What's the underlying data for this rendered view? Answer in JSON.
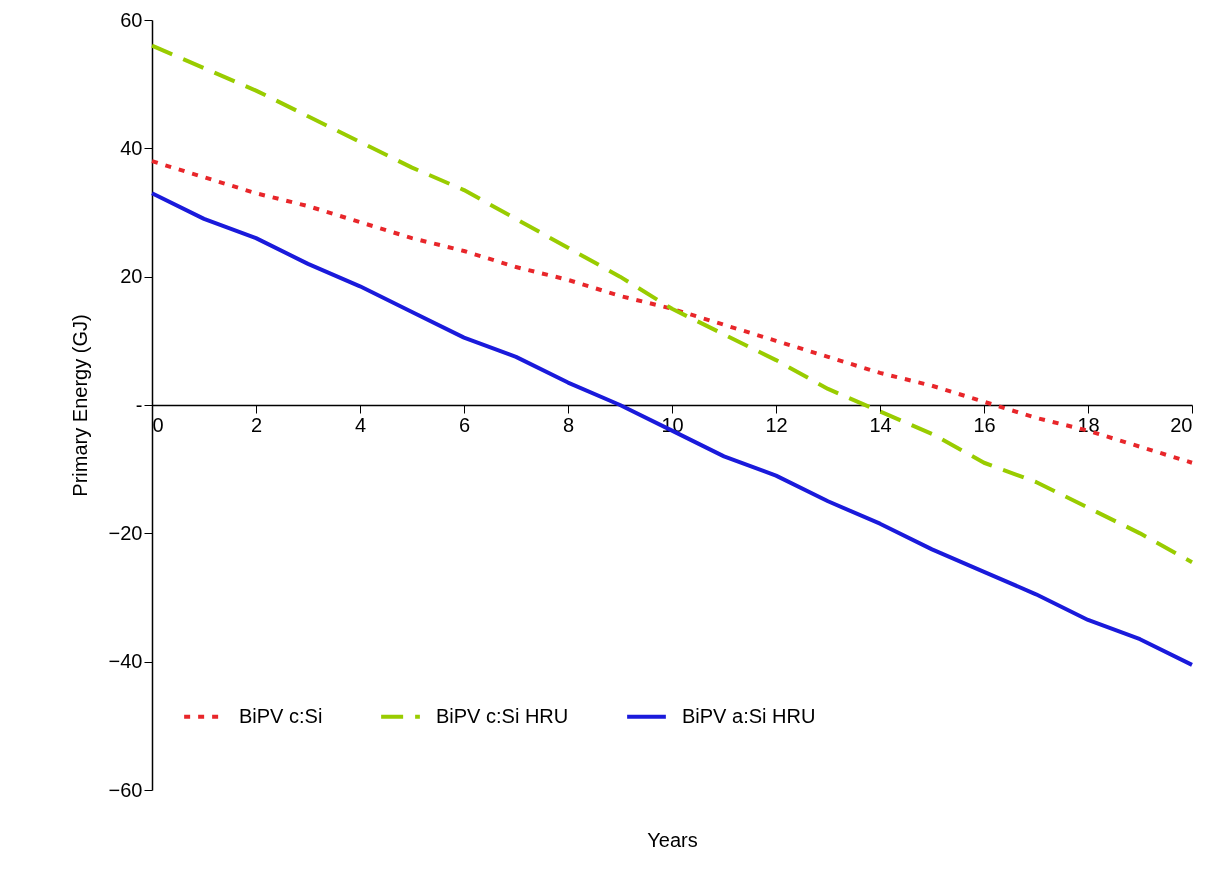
{
  "chart_data": {
    "type": "line",
    "xlabel": "Years",
    "ylabel": "Primary Energy (GJ)",
    "x": [
      0,
      1,
      2,
      3,
      4,
      5,
      6,
      7,
      8,
      9,
      10,
      11,
      12,
      13,
      14,
      15,
      16,
      17,
      18,
      19,
      20
    ],
    "xlim": [
      0,
      20
    ],
    "xticks": [
      0,
      2,
      4,
      6,
      8,
      10,
      12,
      14,
      16,
      18,
      20
    ],
    "ylim": [
      -60,
      60
    ],
    "yticks": [
      -60,
      -40,
      -20,
      {
        "value": 0,
        "label": "-"
      },
      20,
      40,
      60
    ],
    "grid": false,
    "legend": "bottom",
    "marker": "none",
    "series": [
      {
        "name": "BiPV c:Si",
        "color": "#e8262a",
        "line_style": "dotted",
        "values": [
          38,
          35.5,
          33,
          31,
          28.5,
          26,
          24,
          21.5,
          19.5,
          17,
          15,
          12.5,
          10,
          7.5,
          5,
          3,
          0.5,
          -2,
          -4,
          -6.5,
          -9
        ]
      },
      {
        "name": "BiPV c:Si HRU",
        "color": "#99cc00",
        "line_style": "dashed",
        "values": [
          56,
          52.5,
          49,
          45,
          41,
          37,
          33.5,
          29,
          24.5,
          20,
          15,
          11,
          7,
          2.5,
          -1,
          -4.5,
          -9,
          -12,
          -16,
          -20,
          -24.5
        ]
      },
      {
        "name": "BiPV a:Si HRU",
        "color": "#1a1adb",
        "line_style": "solid",
        "values": [
          33,
          29,
          26,
          22,
          18.5,
          14.5,
          10.5,
          7.5,
          3.5,
          0,
          -4,
          -8,
          -11,
          -15,
          -18.5,
          -22.5,
          -26,
          -29.5,
          -33.5,
          -36.5,
          -40.5
        ]
      }
    ]
  }
}
